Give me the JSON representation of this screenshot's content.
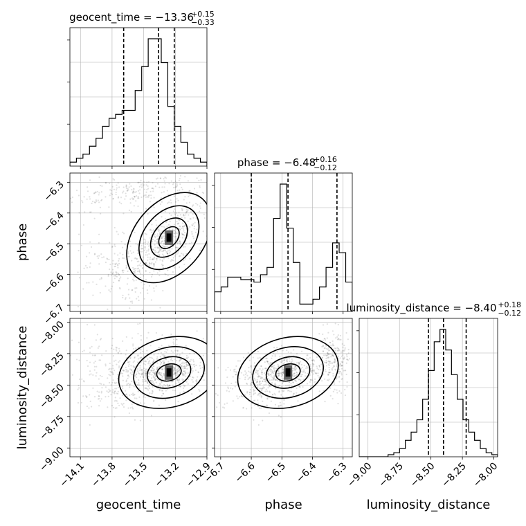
{
  "chart_data": {
    "type": "corner",
    "parameters": [
      "geocent_time",
      "phase",
      "luminosity_distance"
    ],
    "ranges": {
      "geocent_time": [
        -14.2,
        -12.9
      ],
      "phase": [
        -6.72,
        -6.27
      ],
      "luminosity_distance": [
        -9.07,
        -7.97
      ]
    },
    "titles": [
      {
        "param": "geocent_time",
        "text": "geocent_time = −13.36",
        "plus": "+0.15",
        "minus": "−0.33",
        "median": -13.36,
        "q_low": -13.69,
        "q_high": -13.21
      },
      {
        "param": "phase",
        "text": "phase = −6.48",
        "plus": "+0.16",
        "minus": "−0.12",
        "median": -6.48,
        "q_low": -6.6,
        "q_high": -6.32
      },
      {
        "param": "luminosity_distance",
        "text": "luminosity_distance = −8.40",
        "plus": "+0.18",
        "minus": "−0.12",
        "median": -8.4,
        "q_low": -8.52,
        "q_high": -8.22
      }
    ],
    "ticks": {
      "geocent_time": [
        "−14.1",
        "−13.8",
        "−13.5",
        "−13.2",
        "−12.9"
      ],
      "phase": [
        "−6.7",
        "−6.6",
        "−6.5",
        "−6.4",
        "−6.3"
      ],
      "luminosity_distance": [
        "−9.00",
        "−8.75",
        "−8.50",
        "−8.25",
        "−8.00"
      ]
    },
    "tick_values": {
      "geocent_time": [
        -14.1,
        -13.8,
        -13.5,
        -13.2,
        -12.9
      ],
      "phase": [
        -6.7,
        -6.6,
        -6.5,
        -6.4,
        -6.3
      ],
      "luminosity_distance": [
        -9.0,
        -8.75,
        -8.5,
        -8.25,
        -8.0
      ]
    },
    "histograms": {
      "geocent_time": [
        1,
        2,
        3,
        5,
        7,
        10,
        12,
        13,
        14,
        14,
        19,
        25,
        32,
        32,
        26,
        15,
        10,
        6,
        3,
        2,
        1
      ],
      "phase": [
        8,
        10,
        14,
        14,
        13,
        13,
        12,
        15,
        18,
        38,
        52,
        34,
        20,
        3,
        3,
        5,
        10,
        18,
        28,
        24,
        12
      ],
      "luminosity_distance": [
        0,
        0,
        0,
        0,
        0,
        0.5,
        1,
        2,
        4,
        6,
        9,
        14,
        21,
        28,
        31,
        26,
        20,
        14,
        9,
        6,
        4,
        2,
        1,
        0.5
      ]
    },
    "grid": true
  }
}
